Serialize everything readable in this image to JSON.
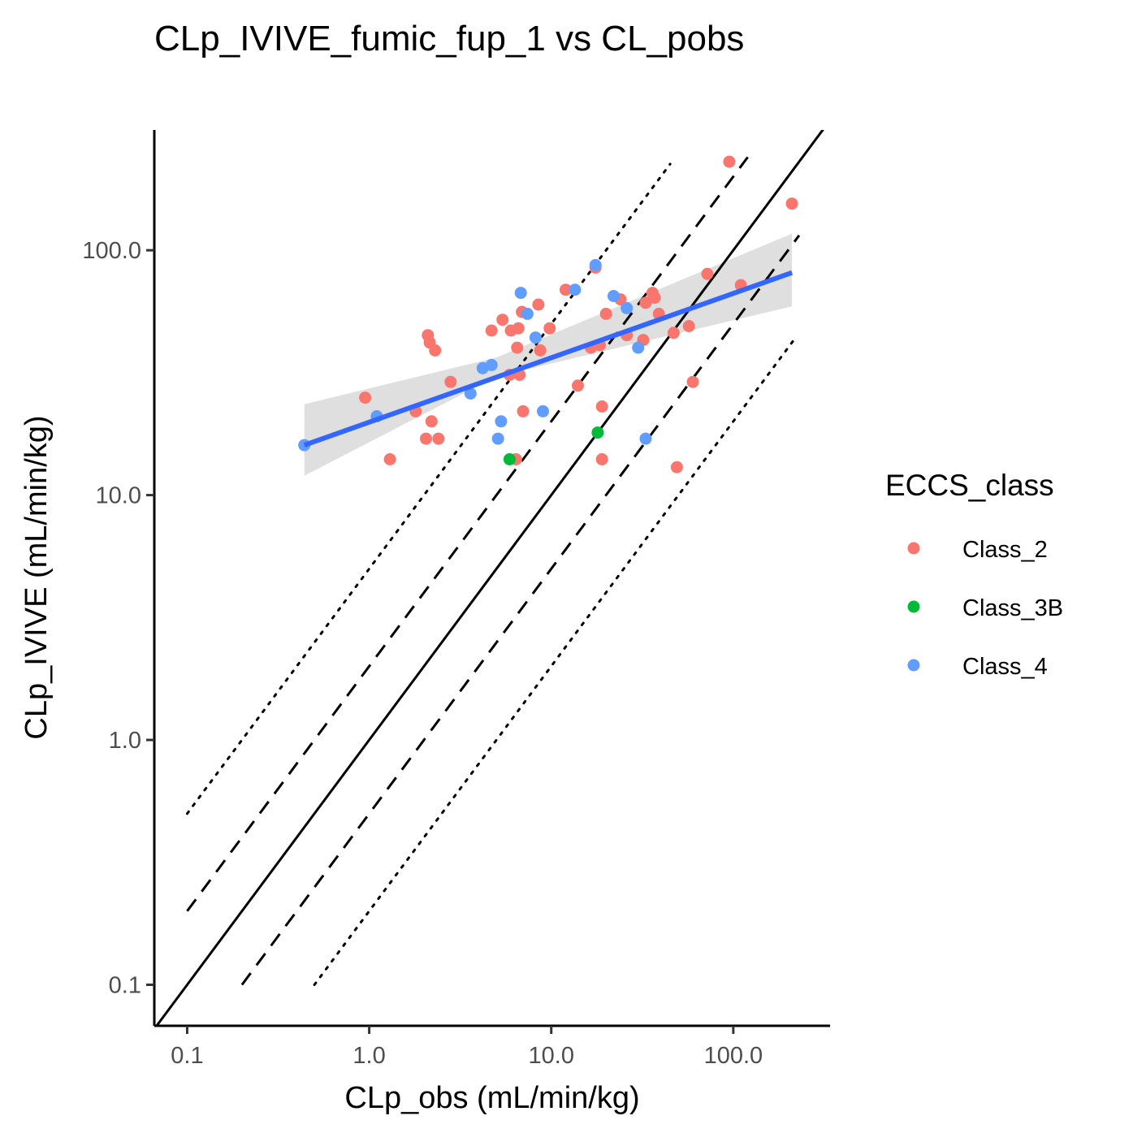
{
  "chart_data": {
    "type": "scatter",
    "title": "CLp_IVIVE_fumic_fup_1 vs CL_pobs",
    "xlabel": "CLp_obs (mL/min/kg)",
    "ylabel": "CLp_IVIVE (mL/min/kg)",
    "x_scale": "log10",
    "y_scale": "log10",
    "xlim": [
      0.066,
      340
    ],
    "ylim": [
      0.068,
      310
    ],
    "x_ticks": [
      0.1,
      1,
      10,
      100
    ],
    "x_tick_labels": [
      "0.1",
      "1.0",
      "10.0",
      "100.0"
    ],
    "y_ticks": [
      0.1,
      1,
      10,
      100
    ],
    "y_tick_labels": [
      "0.1",
      "1.0",
      "10.0",
      "100.0"
    ],
    "grid": false,
    "legend": {
      "title": "ECCS_class",
      "position": "right",
      "entries": [
        {
          "label": "Class_2",
          "color": "#F8766D"
        },
        {
          "label": "Class_3B",
          "color": "#00BA38"
        },
        {
          "label": "Class_4",
          "color": "#619CFF"
        }
      ]
    },
    "reference_lines": [
      {
        "name": "unity",
        "style": "solid",
        "factor": 1,
        "x_range": [
          0.066,
          340
        ]
      },
      {
        "name": "2-fold above",
        "style": "dashed",
        "factor": 2,
        "x_range": [
          0.1,
          120
        ]
      },
      {
        "name": "2-fold below",
        "style": "dashed",
        "factor": 0.5,
        "x_range": [
          0.2,
          230
        ]
      },
      {
        "name": "5-fold above",
        "style": "dotted",
        "factor": 5,
        "x_range": [
          0.1,
          45
        ]
      },
      {
        "name": "5-fold below",
        "style": "dotted",
        "factor": 0.2,
        "x_range": [
          0.5,
          220
        ]
      }
    ],
    "regression": {
      "method": "lm",
      "color": "#3366FF",
      "band_color": "#d9d9d9",
      "x_range": [
        0.44,
        210
      ],
      "fit": [
        [
          0.44,
          16.0
        ],
        [
          5.0,
          33.0
        ],
        [
          210,
          81.0
        ]
      ],
      "band_lower": [
        [
          0.44,
          12.0
        ],
        [
          5.0,
          30.5
        ],
        [
          210,
          59.0
        ]
      ],
      "band_upper": [
        [
          0.44,
          23.5
        ],
        [
          5.0,
          36.5
        ],
        [
          210,
          117.0
        ]
      ]
    },
    "series": [
      {
        "name": "Class_2",
        "color": "#F8766D",
        "points": [
          [
            0.95,
            25
          ],
          [
            1.3,
            14
          ],
          [
            1.8,
            22
          ],
          [
            2.05,
            17
          ],
          [
            2.1,
            45
          ],
          [
            2.15,
            42
          ],
          [
            2.2,
            20
          ],
          [
            2.3,
            39
          ],
          [
            2.4,
            17
          ],
          [
            2.8,
            29
          ],
          [
            4.7,
            47
          ],
          [
            5.4,
            52
          ],
          [
            5.9,
            31
          ],
          [
            6.0,
            47
          ],
          [
            6.4,
            14
          ],
          [
            6.5,
            40
          ],
          [
            6.6,
            48
          ],
          [
            6.7,
            31
          ],
          [
            6.9,
            56
          ],
          [
            7.0,
            22
          ],
          [
            8.5,
            60
          ],
          [
            8.7,
            39
          ],
          [
            9.8,
            48
          ],
          [
            12,
            69
          ],
          [
            14,
            28
          ],
          [
            16.5,
            40
          ],
          [
            17.5,
            85
          ],
          [
            18.5,
            41
          ],
          [
            19,
            23
          ],
          [
            19,
            14
          ],
          [
            20,
            55
          ],
          [
            24,
            63
          ],
          [
            26,
            45
          ],
          [
            32,
            43
          ],
          [
            33,
            61
          ],
          [
            36,
            67
          ],
          [
            37,
            64
          ],
          [
            39,
            55
          ],
          [
            47,
            46
          ],
          [
            49,
            13
          ],
          [
            57,
            49
          ],
          [
            60,
            29
          ],
          [
            72,
            80
          ],
          [
            95,
            230
          ],
          [
            110,
            72
          ],
          [
            210,
            155
          ]
        ]
      },
      {
        "name": "Class_3B",
        "color": "#00BA38",
        "points": [
          [
            5.9,
            14
          ],
          [
            18,
            18
          ]
        ]
      },
      {
        "name": "Class_4",
        "color": "#619CFF",
        "points": [
          [
            0.44,
            16
          ],
          [
            1.1,
            21
          ],
          [
            3.6,
            26
          ],
          [
            4.2,
            33
          ],
          [
            4.7,
            34
          ],
          [
            5.1,
            17
          ],
          [
            5.3,
            20
          ],
          [
            6.8,
            67
          ],
          [
            7.4,
            55
          ],
          [
            8.2,
            44
          ],
          [
            9,
            22
          ],
          [
            13.5,
            69
          ],
          [
            17.5,
            87
          ],
          [
            22,
            65
          ],
          [
            26,
            58
          ],
          [
            30,
            40
          ],
          [
            33,
            17
          ]
        ]
      }
    ]
  }
}
